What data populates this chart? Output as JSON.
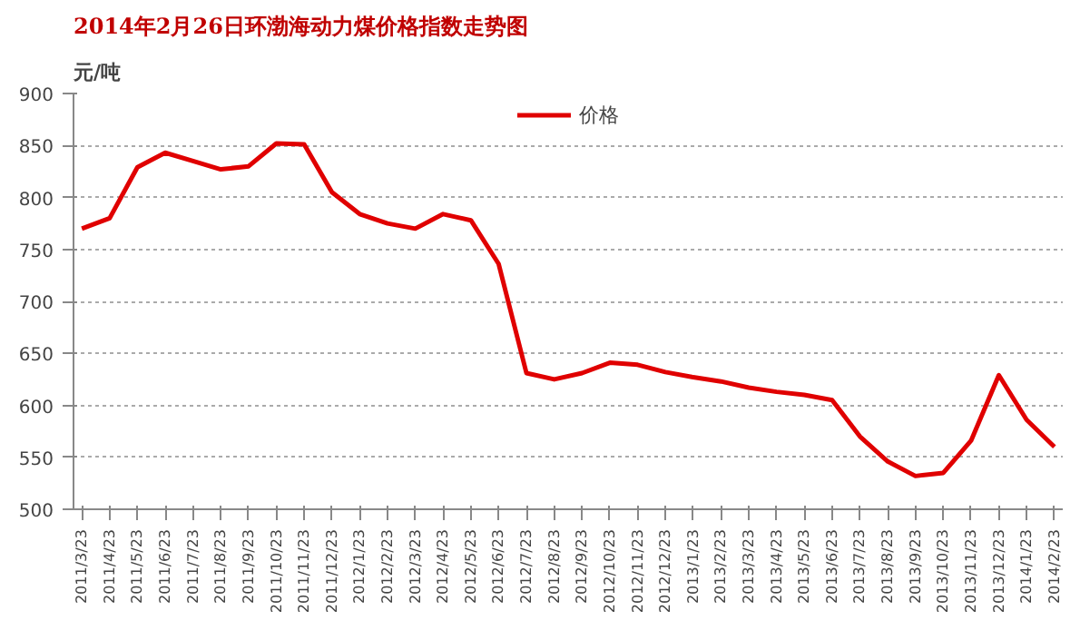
{
  "chart_data": {
    "type": "line",
    "title": "2014年2月26日环渤海动力煤价格指数走势图",
    "ylabel": "元/吨",
    "categories": [
      "2011/3/23",
      "2011/4/23",
      "2011/5/23",
      "2011/6/23",
      "2011/7/23",
      "2011/8/23",
      "2011/9/23",
      "2011/10/23",
      "2011/11/23",
      "2011/12/23",
      "2012/1/23",
      "2012/2/23",
      "2012/3/23",
      "2012/4/23",
      "2012/5/23",
      "2012/6/23",
      "2012/7/23",
      "2012/8/23",
      "2012/9/23",
      "2012/10/23",
      "2012/11/23",
      "2012/12/23",
      "2013/1/23",
      "2013/2/23",
      "2013/3/23",
      "2013/4/23",
      "2013/5/23",
      "2013/6/23",
      "2013/7/23",
      "2013/8/23",
      "2013/9/23",
      "2013/10/23",
      "2013/11/23",
      "2013/12/23",
      "2014/1/23",
      "2014/2/23"
    ],
    "series": [
      {
        "name": "价格",
        "color": "#e00000",
        "values": [
          770,
          780,
          829,
          843,
          835,
          827,
          830,
          852,
          851,
          805,
          784,
          775,
          770,
          784,
          778,
          736,
          631,
          625,
          631,
          641,
          639,
          632,
          627,
          623,
          617,
          613,
          610,
          605,
          570,
          546,
          532,
          535,
          566,
          629,
          586,
          560
        ]
      }
    ],
    "ylim": [
      500,
      900
    ],
    "yticks": [
      500,
      550,
      600,
      650,
      700,
      750,
      800,
      850,
      900
    ],
    "grid": "y",
    "legend": "top",
    "line_style": "solid",
    "marker": "none"
  }
}
